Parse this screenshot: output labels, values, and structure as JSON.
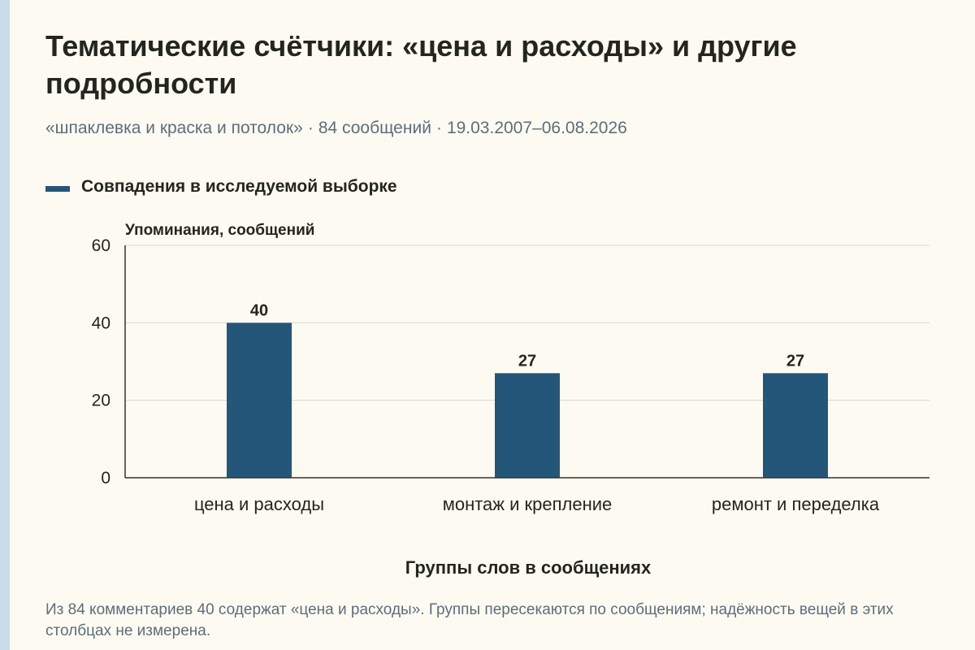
{
  "header": {
    "title": "Тематические счётчики: «цена и расходы» и другие подробности",
    "subtitle_query": "«шпаклевка и краска и потолок»",
    "subtitle_separator": "·",
    "subtitle_count": "84 сообщений",
    "subtitle_period": "19.03.2007–06.08.2026"
  },
  "colors": {
    "bar": "#24567a",
    "background": "#fdfbf1",
    "grid": "#d8d8d0",
    "axis": "#333333",
    "side_strip": "#c9dcea"
  },
  "chart_data": {
    "type": "bar",
    "title": "Тематические счётчики: «цена и расходы» и другие подробности",
    "xlabel": "Группы слов в сообщениях",
    "ylabel": "Упоминания, сообщений",
    "categories": [
      "цена и расходы",
      "монтаж и крепление",
      "ремонт и переделка"
    ],
    "series": [
      {
        "name": "Совпадения в исследуемой выборке",
        "values": [
          40,
          27,
          27
        ]
      }
    ],
    "ylim": [
      0,
      60
    ],
    "yticks": [
      0,
      20,
      40,
      60
    ],
    "grid": true,
    "legend_position": "top-left"
  },
  "footnote": "Из 84 комментариев 40 содержат «цена и расходы». Группы пересекаются по сообщениям; надёжность вещей в этих столбцах не измерена."
}
